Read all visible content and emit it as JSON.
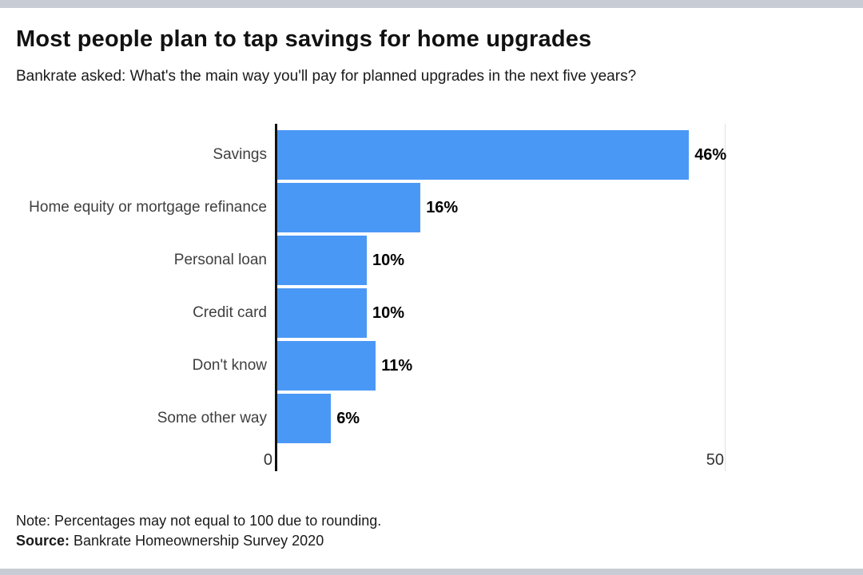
{
  "page": {
    "frame_bar_color": "#c8ccd4",
    "background": "#ffffff"
  },
  "header": {
    "title": "Most people plan to tap savings for home upgrades",
    "subtitle": "Bankrate asked: What's the main way you'll pay for planned upgrades in the next five years?"
  },
  "chart_data": {
    "type": "bar",
    "orientation": "horizontal",
    "title": "Most people plan to tap savings for home upgrades",
    "categories": [
      "Savings",
      "Home equity or mortgage refinance",
      "Personal loan",
      "Credit card",
      "Don't know",
      "Some other way"
    ],
    "values": [
      46,
      16,
      10,
      10,
      11,
      6
    ],
    "value_labels": [
      "46%",
      "16%",
      "10%",
      "10%",
      "11%",
      "6%"
    ],
    "bar_color": "#4a98f5",
    "xlim": [
      0,
      50
    ],
    "x_tick_labels": [
      "0",
      "50"
    ],
    "grid": "single vertical gridline at x=50, solid black baseline at x=0",
    "legend": "none"
  },
  "footer": {
    "note": "Note: Percentages may not equal to 100 due to rounding.",
    "source_label": "Source:",
    "source_text": " Bankrate Homeownership Survey 2020"
  }
}
